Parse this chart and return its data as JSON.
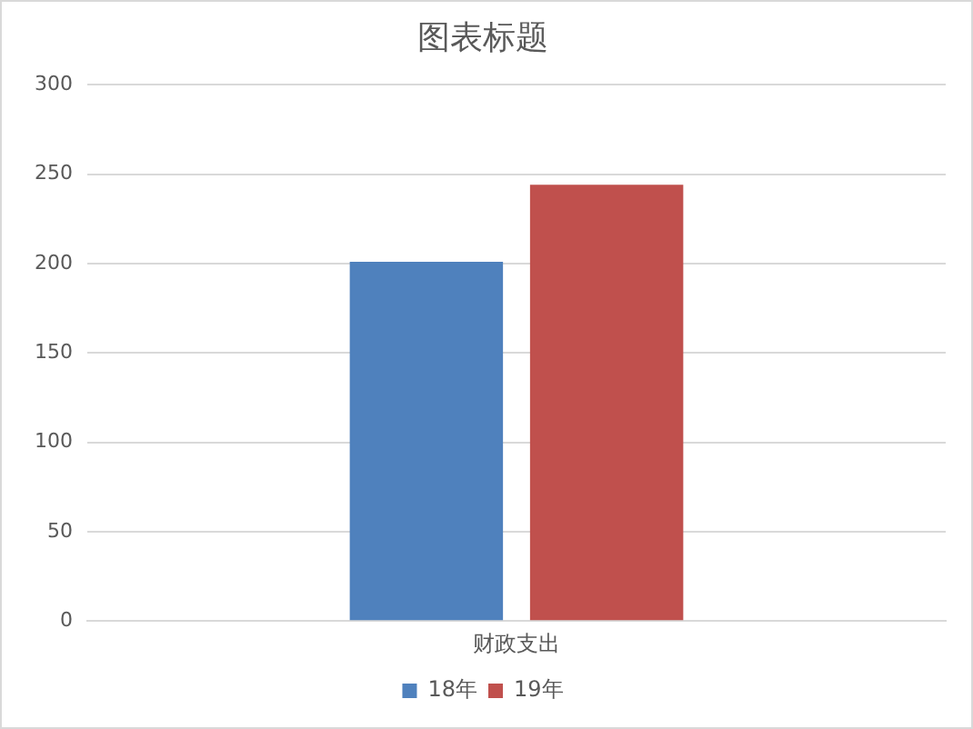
{
  "chart_data": {
    "type": "bar",
    "title": "图表标题",
    "categories": [
      "财政支出"
    ],
    "series": [
      {
        "name": "18年",
        "color": "#4f81bd",
        "values": [
          201
        ]
      },
      {
        "name": "19年",
        "color": "#c0504d",
        "values": [
          244
        ]
      }
    ],
    "ylim": [
      0,
      300
    ],
    "yticks": [
      0,
      50,
      100,
      150,
      200,
      250,
      300
    ],
    "grid": "y",
    "legend": "bottom"
  }
}
